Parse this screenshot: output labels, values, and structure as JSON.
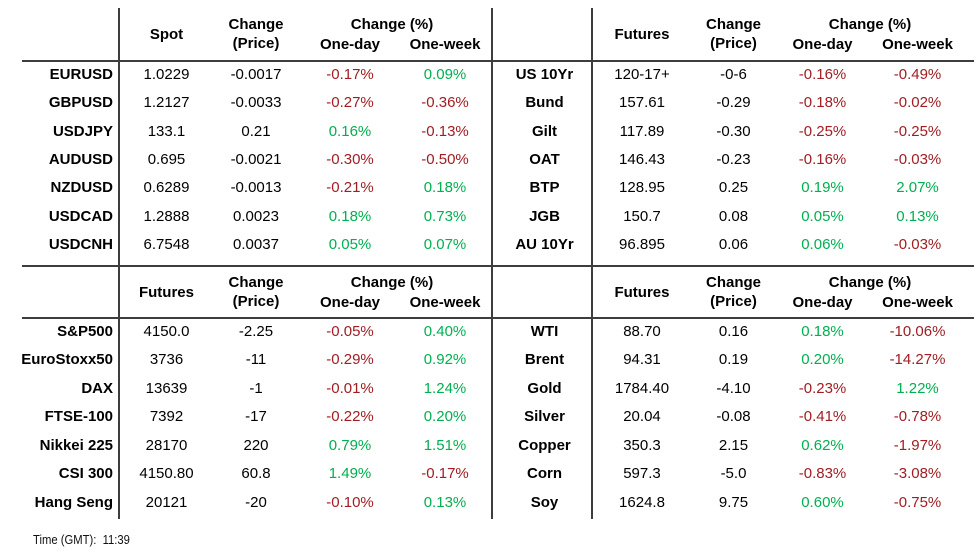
{
  "colors": {
    "positive": "#00B050",
    "negative": "#A01D23",
    "grid": "#3d3d3d"
  },
  "footer": {
    "time_label": "Time (GMT):",
    "time_value": "11:39"
  },
  "tables": [
    {
      "id": "fx-spot",
      "headers": {
        "value": "Spot",
        "change_line1": "Change",
        "change_line2": "(Price)",
        "pct_group": "Change (%)",
        "one_day": "One-day",
        "one_week": "One-week"
      },
      "rows": [
        [
          "EURUSD",
          "1.0229",
          "-0.0017",
          "-0.17%",
          "0.09%"
        ],
        [
          "GBPUSD",
          "1.2127",
          "-0.0033",
          "-0.27%",
          "-0.36%"
        ],
        [
          "USDJPY",
          "133.1",
          "0.21",
          "0.16%",
          "-0.13%"
        ],
        [
          "AUDUSD",
          "0.695",
          "-0.0021",
          "-0.30%",
          "-0.50%"
        ],
        [
          "NZDUSD",
          "0.6289",
          "-0.0013",
          "-0.21%",
          "0.18%"
        ],
        [
          "USDCAD",
          "1.2888",
          "0.0023",
          "0.18%",
          "0.73%"
        ],
        [
          "USDCNH",
          "6.7548",
          "0.0037",
          "0.05%",
          "0.07%"
        ]
      ]
    },
    {
      "id": "bond-futures",
      "headers": {
        "value": "Futures",
        "change_line1": "Change",
        "change_line2": "(Price)",
        "pct_group": "Change (%)",
        "one_day": "One-day",
        "one_week": "One-week"
      },
      "rows": [
        [
          "US 10Yr",
          "120-17+",
          "-0-6",
          "-0.16%",
          "-0.49%"
        ],
        [
          "Bund",
          "157.61",
          "-0.29",
          "-0.18%",
          "-0.02%"
        ],
        [
          "Gilt",
          "117.89",
          "-0.30",
          "-0.25%",
          "-0.25%"
        ],
        [
          "OAT",
          "146.43",
          "-0.23",
          "-0.16%",
          "-0.03%"
        ],
        [
          "BTP",
          "128.95",
          "0.25",
          "0.19%",
          "2.07%"
        ],
        [
          "JGB",
          "150.7",
          "0.08",
          "0.05%",
          "0.13%"
        ],
        [
          "AU 10Yr",
          "96.895",
          "0.06",
          "0.06%",
          "-0.03%"
        ]
      ]
    },
    {
      "id": "equity-index-futures",
      "headers": {
        "value": "Futures",
        "change_line1": "Change",
        "change_line2": "(Price)",
        "pct_group": "Change (%)",
        "one_day": "One-day",
        "one_week": "One-week"
      },
      "rows": [
        [
          "S&P500",
          "4150.0",
          "-2.25",
          "-0.05%",
          "0.40%"
        ],
        [
          "EuroStoxx50",
          "3736",
          "-11",
          "-0.29%",
          "0.92%"
        ],
        [
          "DAX",
          "13639",
          "-1",
          "-0.01%",
          "1.24%"
        ],
        [
          "FTSE-100",
          "7392",
          "-17",
          "-0.22%",
          "0.20%"
        ],
        [
          "Nikkei 225",
          "28170",
          "220",
          "0.79%",
          "1.51%"
        ],
        [
          "CSI 300",
          "4150.80",
          "60.8",
          "1.49%",
          "-0.17%"
        ],
        [
          "Hang Seng",
          "20121",
          "-20",
          "-0.10%",
          "0.13%"
        ]
      ]
    },
    {
      "id": "commodity-futures",
      "headers": {
        "value": "Futures",
        "change_line1": "Change",
        "change_line2": "(Price)",
        "pct_group": "Change (%)",
        "one_day": "One-day",
        "one_week": "One-week"
      },
      "rows": [
        [
          "WTI",
          "88.70",
          "0.16",
          "0.18%",
          "-10.06%"
        ],
        [
          "Brent",
          "94.31",
          "0.19",
          "0.20%",
          "-14.27%"
        ],
        [
          "Gold",
          "1784.40",
          "-4.10",
          "-0.23%",
          "1.22%"
        ],
        [
          "Silver",
          "20.04",
          "-0.08",
          "-0.41%",
          "-0.78%"
        ],
        [
          "Copper",
          "350.3",
          "2.15",
          "0.62%",
          "-1.97%"
        ],
        [
          "Corn",
          "597.3",
          "-5.0",
          "-0.83%",
          "-3.08%"
        ],
        [
          "Soy",
          "1624.8",
          "9.75",
          "0.60%",
          "-0.75%"
        ]
      ]
    }
  ]
}
